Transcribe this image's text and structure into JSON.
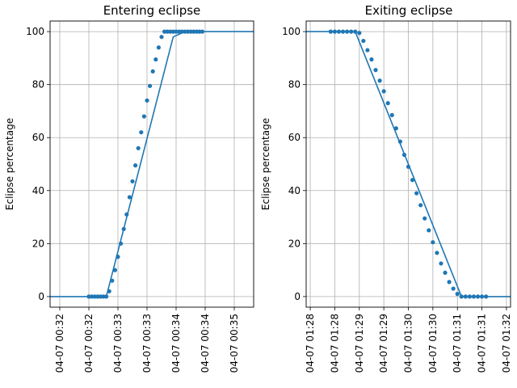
{
  "colors": {
    "series": "#1f77b4",
    "grid": "#b0b0b0",
    "axes": "#000000"
  },
  "chart_data": [
    {
      "type": "line",
      "title": "Entering eclipse",
      "xlabel": "",
      "ylabel": "Eclipse percentage",
      "grid": true,
      "ylim": [
        -4,
        104
      ],
      "yticks": [
        0,
        20,
        40,
        60,
        80,
        100
      ],
      "xlim": [
        "04-07 00:31:50",
        "04-07 00:35:20"
      ],
      "xtick_times": [
        "04-07 00:32:00",
        "04-07 00:32:30",
        "04-07 00:33:00",
        "04-07 00:33:30",
        "04-07 00:34:00",
        "04-07 00:34:30",
        "04-07 00:35:00"
      ],
      "xtick_labels": [
        "04-07 00:32",
        "04-07 00:32",
        "04-07 00:33",
        "04-07 00:33",
        "04-07 00:34",
        "04-07 00:34",
        "04-07 00:35"
      ],
      "line_x": [
        "04-07 00:31:50",
        "04-07 00:32:30",
        "04-07 00:32:48",
        "04-07 00:33:57",
        "04-07 00:34:09",
        "04-07 00:35:20"
      ],
      "line_y": [
        0,
        0,
        0,
        98,
        100,
        100
      ],
      "points_x": [
        "04-07 00:32:30",
        "04-07 00:32:33",
        "04-07 00:32:36",
        "04-07 00:32:39",
        "04-07 00:32:42",
        "04-07 00:32:45",
        "04-07 00:32:48",
        "04-07 00:32:51",
        "04-07 00:32:54",
        "04-07 00:32:57",
        "04-07 00:33:00",
        "04-07 00:33:03",
        "04-07 00:33:06",
        "04-07 00:33:09",
        "04-07 00:33:12",
        "04-07 00:33:15",
        "04-07 00:33:18",
        "04-07 00:33:21",
        "04-07 00:33:24",
        "04-07 00:33:27",
        "04-07 00:33:30",
        "04-07 00:33:33",
        "04-07 00:33:36",
        "04-07 00:33:39",
        "04-07 00:33:42",
        "04-07 00:33:45",
        "04-07 00:33:48",
        "04-07 00:33:51",
        "04-07 00:33:54",
        "04-07 00:33:57",
        "04-07 00:34:00",
        "04-07 00:34:03",
        "04-07 00:34:06",
        "04-07 00:34:09",
        "04-07 00:34:12",
        "04-07 00:34:15",
        "04-07 00:34:18",
        "04-07 00:34:21",
        "04-07 00:34:24",
        "04-07 00:34:27"
      ],
      "points_y": [
        0,
        0,
        0,
        0,
        0,
        0,
        0,
        2,
        6,
        10,
        15,
        20,
        25.5,
        31,
        37.5,
        43.5,
        49.5,
        56,
        62,
        68,
        74,
        79.5,
        85,
        89.5,
        94,
        98,
        100,
        100,
        100,
        100,
        100,
        100,
        100,
        100,
        100,
        100,
        100,
        100,
        100,
        100
      ]
    },
    {
      "type": "line",
      "title": "Exiting eclipse",
      "xlabel": "",
      "ylabel": "Eclipse percentage",
      "grid": true,
      "ylim": [
        -4,
        104
      ],
      "yticks": [
        0,
        20,
        40,
        60,
        80,
        100
      ],
      "xlim": [
        "04-07 01:27:55",
        "04-07 01:32:05"
      ],
      "xtick_times": [
        "04-07 01:28:00",
        "04-07 01:28:30",
        "04-07 01:29:00",
        "04-07 01:29:30",
        "04-07 01:30:00",
        "04-07 01:30:30",
        "04-07 01:31:00",
        "04-07 01:31:30",
        "04-07 01:32:00"
      ],
      "xtick_labels": [
        "04-07 01:28",
        "04-07 01:28",
        "04-07 01:29",
        "04-07 01:29",
        "04-07 01:30",
        "04-07 01:30",
        "04-07 01:31",
        "04-07 01:31",
        "04-07 01:32"
      ],
      "line_x": [
        "04-07 01:27:55",
        "04-07 01:28:55",
        "04-07 01:31:05",
        "04-07 01:32:05"
      ],
      "line_y": [
        100,
        100,
        0,
        0
      ],
      "points_x": [
        "04-07 01:28:25",
        "04-07 01:28:30",
        "04-07 01:28:35",
        "04-07 01:28:40",
        "04-07 01:28:45",
        "04-07 01:28:50",
        "04-07 01:28:55",
        "04-07 01:29:00",
        "04-07 01:29:05",
        "04-07 01:29:10",
        "04-07 01:29:15",
        "04-07 01:29:20",
        "04-07 01:29:25",
        "04-07 01:29:30",
        "04-07 01:29:35",
        "04-07 01:29:40",
        "04-07 01:29:45",
        "04-07 01:29:50",
        "04-07 01:29:55",
        "04-07 01:30:00",
        "04-07 01:30:05",
        "04-07 01:30:10",
        "04-07 01:30:15",
        "04-07 01:30:20",
        "04-07 01:30:25",
        "04-07 01:30:30",
        "04-07 01:30:35",
        "04-07 01:30:40",
        "04-07 01:30:45",
        "04-07 01:30:50",
        "04-07 01:30:55",
        "04-07 01:31:00",
        "04-07 01:31:05",
        "04-07 01:31:10",
        "04-07 01:31:15",
        "04-07 01:31:20",
        "04-07 01:31:25",
        "04-07 01:31:30",
        "04-07 01:31:35"
      ],
      "points_y": [
        100,
        100,
        100,
        100,
        100,
        100,
        100,
        99.5,
        96.5,
        93,
        89.5,
        85.5,
        81.5,
        77.5,
        73,
        68.5,
        63.5,
        58.5,
        53.5,
        49,
        44,
        39,
        34.5,
        29.5,
        25,
        20.5,
        16.5,
        12.5,
        9,
        5.5,
        3,
        1,
        0,
        0,
        0,
        0,
        0,
        0,
        0
      ]
    }
  ]
}
